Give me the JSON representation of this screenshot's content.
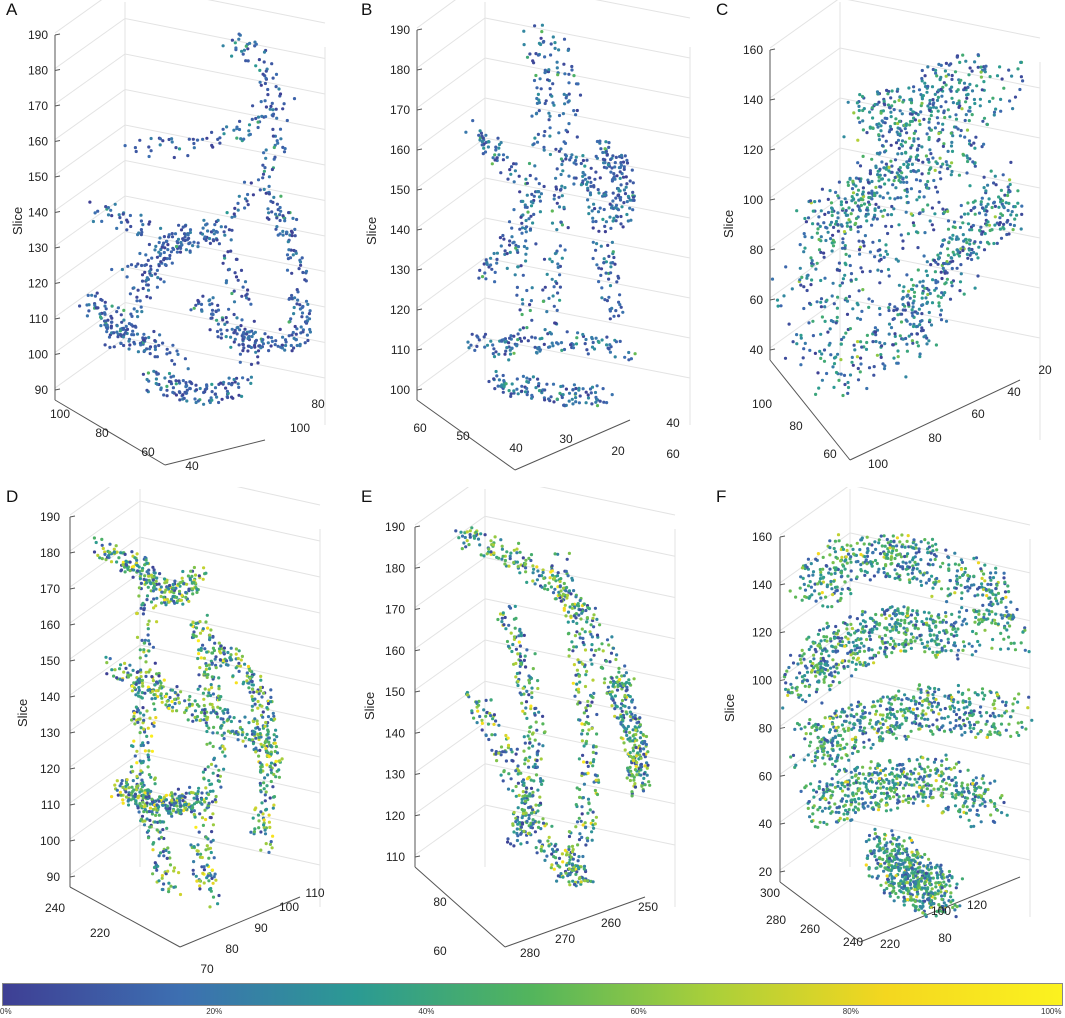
{
  "colors": {
    "colormap": [
      "#3e3f94",
      "#3d6fb1",
      "#2b9a93",
      "#53b55c",
      "#a9cf3a",
      "#f4d71f",
      "#fbf21f"
    ],
    "axis": "#555555",
    "grid": "#e3e3e3"
  },
  "chart_data": [
    {
      "type": "scatter3d",
      "panel": "A",
      "ylabel": "Slice",
      "z_ticks": [
        "90",
        "100",
        "110",
        "120",
        "130",
        "140",
        "150",
        "160",
        "170",
        "180",
        "190"
      ],
      "x_ticks": [
        "100",
        "80",
        "60",
        "40"
      ],
      "y_ticks": [
        "100",
        "80"
      ],
      "intensity_range": [
        0,
        0.25
      ]
    },
    {
      "type": "scatter3d",
      "panel": "B",
      "ylabel": "Slice",
      "z_ticks": [
        "100",
        "110",
        "120",
        "130",
        "140",
        "150",
        "160",
        "170",
        "180",
        "190"
      ],
      "x_ticks": [
        "60",
        "50",
        "40",
        "30",
        "20"
      ],
      "y_ticks": [
        "40",
        "60"
      ],
      "intensity_range": [
        0,
        0.3
      ]
    },
    {
      "type": "scatter3d",
      "panel": "C",
      "ylabel": "Slice",
      "z_ticks": [
        "40",
        "60",
        "80",
        "100",
        "120",
        "140",
        "160"
      ],
      "x_ticks": [
        "100",
        "80",
        "60"
      ],
      "y_ticks": [
        "100",
        "80",
        "60",
        "40",
        "20"
      ],
      "intensity_range": [
        0,
        0.45
      ]
    },
    {
      "type": "scatter3d",
      "panel": "D",
      "ylabel": "Slice",
      "z_ticks": [
        "90",
        "100",
        "110",
        "120",
        "130",
        "140",
        "150",
        "160",
        "170",
        "180",
        "190"
      ],
      "x_ticks": [
        "240",
        "220"
      ],
      "y_ticks": [
        "70",
        "80",
        "90",
        "100",
        "110"
      ],
      "intensity_range": [
        0,
        0.75
      ]
    },
    {
      "type": "scatter3d",
      "panel": "E",
      "ylabel": "Slice",
      "z_ticks": [
        "110",
        "120",
        "130",
        "140",
        "150",
        "160",
        "170",
        "180",
        "190"
      ],
      "x_ticks": [
        "80",
        "60"
      ],
      "y_ticks": [
        "280",
        "270",
        "260",
        "250"
      ],
      "intensity_range": [
        0,
        0.7
      ]
    },
    {
      "type": "scatter3d",
      "panel": "F",
      "ylabel": "Slice",
      "z_ticks": [
        "20",
        "40",
        "60",
        "80",
        "100",
        "120",
        "140",
        "160"
      ],
      "x_ticks": [
        "300",
        "280",
        "260",
        "240",
        "220"
      ],
      "y_ticks": [
        "80",
        "100",
        "120"
      ],
      "intensity_range": [
        0.05,
        0.6
      ]
    }
  ],
  "colorbar": {
    "ticks": [
      "0%",
      "20%",
      "40%",
      "60%",
      "80%",
      "100%"
    ]
  }
}
